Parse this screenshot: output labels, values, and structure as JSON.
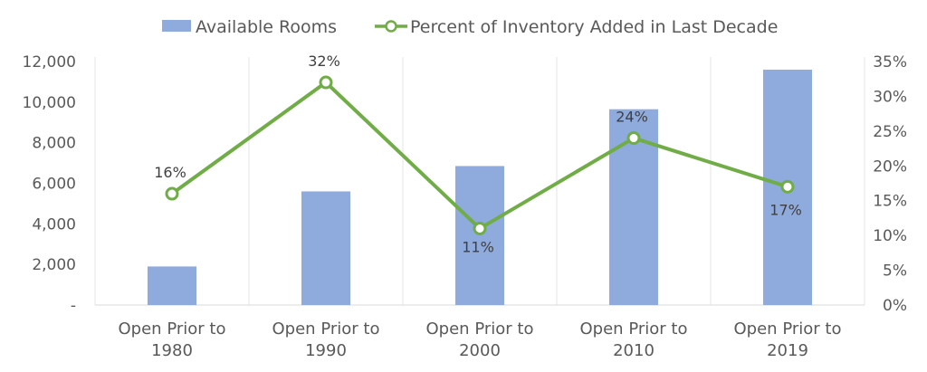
{
  "chart_data": {
    "type": "bar",
    "categories": [
      [
        "Open Prior to",
        "1980"
      ],
      [
        "Open Prior to",
        "1990"
      ],
      [
        "Open Prior to",
        "2000"
      ],
      [
        "Open Prior to",
        "2010"
      ],
      [
        "Open Prior to",
        "2019"
      ]
    ],
    "series": [
      {
        "name": "Available Rooms",
        "type": "bar",
        "axis": "left",
        "color": "#8faadc",
        "values": [
          1900,
          5600,
          6850,
          9650,
          11600
        ]
      },
      {
        "name": "Percent of Inventory Added in Last Decade",
        "type": "line",
        "axis": "right",
        "color": "#70ad47",
        "values": [
          16,
          32,
          11,
          24,
          17
        ],
        "labels": [
          "16%",
          "32%",
          "11%",
          "24%",
          "17%"
        ]
      }
    ],
    "y_left": {
      "ylim": [
        0,
        12000
      ],
      "ticks": [
        0,
        2000,
        4000,
        6000,
        8000,
        10000,
        12000
      ],
      "tick_labels": [
        "-",
        "2,000",
        "4,000",
        "6,000",
        "8,000",
        "10,000",
        "12,000"
      ]
    },
    "y_right": {
      "ylim": [
        0,
        35
      ],
      "ticks": [
        0,
        5,
        10,
        15,
        20,
        25,
        30,
        35
      ],
      "tick_labels": [
        "0%",
        "5%",
        "10%",
        "15%",
        "20%",
        "25%",
        "30%",
        "35%"
      ]
    },
    "legend": {
      "position": "top",
      "entries": [
        "Available Rooms",
        "Percent of Inventory Added in Last Decade"
      ]
    },
    "grid": "vertical-category-separators",
    "title": "",
    "xlabel": "",
    "ylabel": ""
  }
}
